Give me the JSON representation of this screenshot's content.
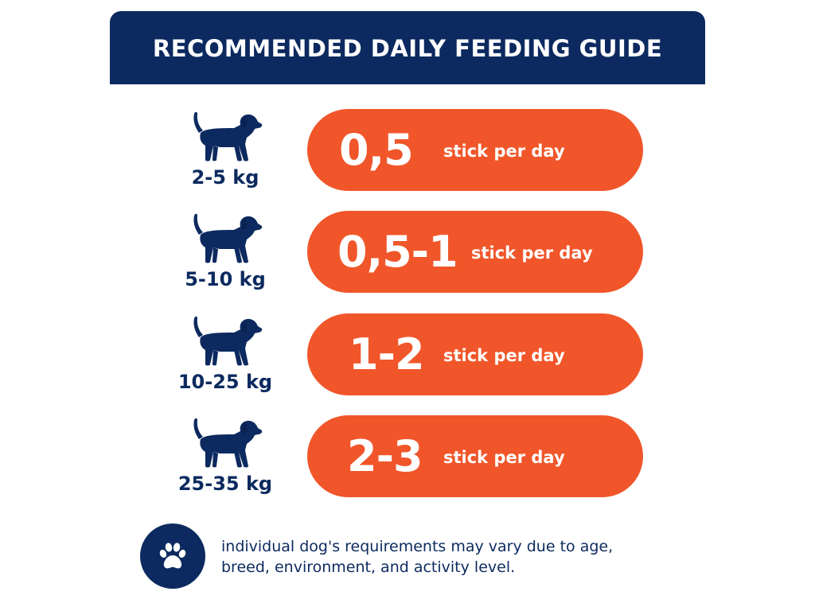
{
  "header": {
    "title": "RECOMMENDED DAILY FEEDING GUIDE"
  },
  "rows": [
    {
      "weight": "2-5 kg",
      "amount": "0,5",
      "unit": "stick per day"
    },
    {
      "weight": "5-10 kg",
      "amount": "0,5-1",
      "unit": "stick per day"
    },
    {
      "weight": "10-25 kg",
      "amount": "1-2",
      "unit": "stick per day"
    },
    {
      "weight": "25-35 kg",
      "amount": "2-3",
      "unit": "stick per day"
    }
  ],
  "footer": {
    "note_line1": "individual dog's requirements may vary due to age,",
    "note_line2": "breed, environment, and activity level."
  },
  "icons": {
    "dog": "dog-icon",
    "paw": "paw-icon"
  },
  "colors": {
    "navy": "#0c2a5f",
    "orange": "#f0562a",
    "white": "#ffffff"
  }
}
